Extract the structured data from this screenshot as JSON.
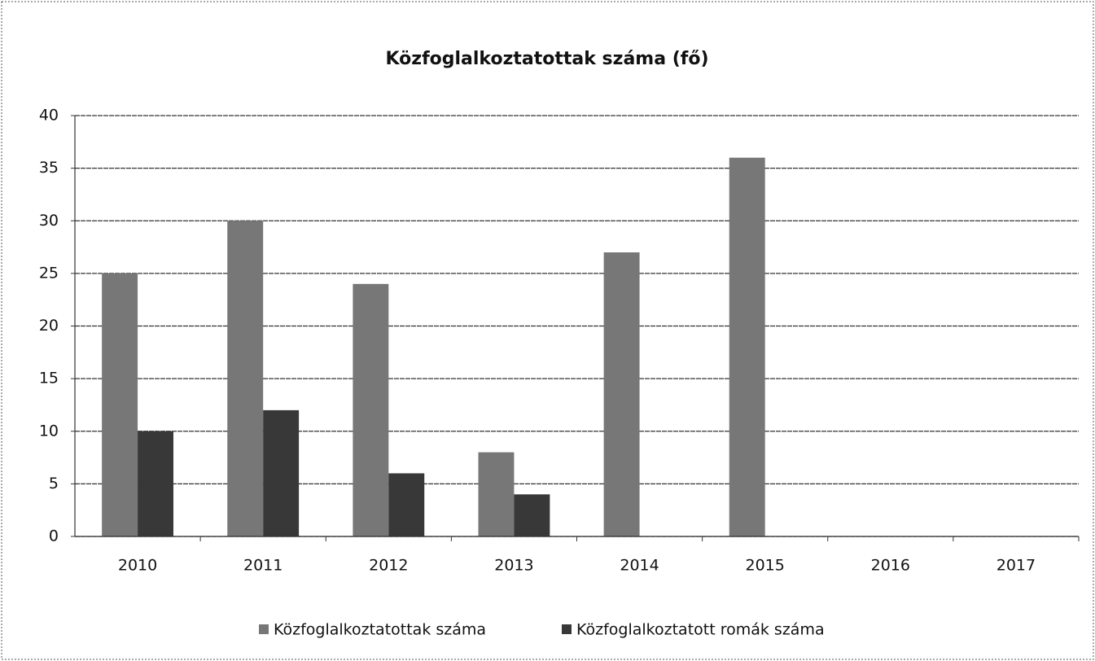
{
  "chart_data": {
    "type": "bar",
    "title": "Közfoglalkoztatottak száma (fő)",
    "categories": [
      "2010",
      "2011",
      "2012",
      "2013",
      "2014",
      "2015",
      "2016",
      "2017"
    ],
    "series": [
      {
        "name": "Közfoglalkoztatottak száma",
        "color": "#777777",
        "values": [
          25,
          30,
          24,
          8,
          27,
          36,
          null,
          null
        ]
      },
      {
        "name": "Közfoglalkoztatott romák száma",
        "color": "#383838",
        "values": [
          10,
          12,
          6,
          4,
          null,
          null,
          null,
          null
        ]
      }
    ],
    "ylim": [
      0,
      40
    ],
    "yticks": [
      0,
      5,
      10,
      15,
      20,
      25,
      30,
      35,
      40
    ],
    "grid": true,
    "legend": "bottom"
  }
}
